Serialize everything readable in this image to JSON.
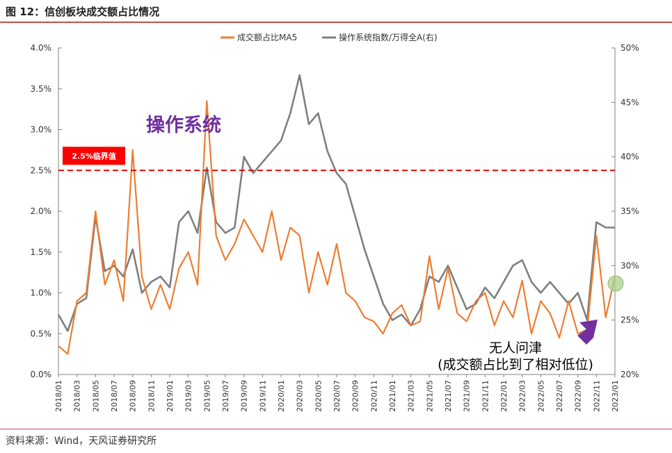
{
  "figure": {
    "title": "图 12：信创板块成交额占比情况",
    "source": "资料来源：Wind，天风证券研究所"
  },
  "colors": {
    "series_ratio": "#ed7d31",
    "series_index": "#7f7f7f",
    "threshold_line": "#e00000",
    "threshold_box": "#ff0000",
    "callout_text": "#7030a0",
    "arrow": "#7030a0",
    "marker": "#a9d18e"
  },
  "chart_data": {
    "type": "line",
    "title": "",
    "legend_position": "top-center",
    "x_ticks": [
      "2018/01",
      "2018/03",
      "2018/05",
      "2018/07",
      "2018/09",
      "2018/11",
      "2019/01",
      "2019/03",
      "2019/05",
      "2019/07",
      "2019/09",
      "2019/11",
      "2020/01",
      "2020/03",
      "2020/05",
      "2020/07",
      "2020/09",
      "2020/11",
      "2021/01",
      "2021/03",
      "2021/05",
      "2021/07",
      "2021/09",
      "2021/11",
      "2022/01",
      "2022/03",
      "2022/05",
      "2022/07",
      "2022/09",
      "2022/11",
      "2023/01"
    ],
    "y_left": {
      "min": 0,
      "max": 4.0,
      "ticks": [
        "0.0%",
        "0.5%",
        "1.0%",
        "1.5%",
        "2.0%",
        "2.5%",
        "3.0%",
        "3.5%",
        "4.0%"
      ]
    },
    "y_right": {
      "min": 20,
      "max": 50,
      "ticks": [
        "20%",
        "25%",
        "30%",
        "35%",
        "40%",
        "45%",
        "50%"
      ]
    },
    "series": [
      {
        "name": "成交额占比MA5",
        "axis": "left",
        "x": [
          "2018/01",
          "2018/02",
          "2018/03",
          "2018/04",
          "2018/05",
          "2018/06",
          "2018/07",
          "2018/08",
          "2018/09",
          "2018/10",
          "2018/11",
          "2018/12",
          "2019/01",
          "2019/02",
          "2019/03",
          "2019/04",
          "2019/05",
          "2019/06",
          "2019/07",
          "2019/08",
          "2019/09",
          "2019/10",
          "2019/11",
          "2019/12",
          "2020/01",
          "2020/02",
          "2020/03",
          "2020/04",
          "2020/05",
          "2020/06",
          "2020/07",
          "2020/08",
          "2020/09",
          "2020/10",
          "2020/11",
          "2020/12",
          "2021/01",
          "2021/02",
          "2021/03",
          "2021/04",
          "2021/05",
          "2021/06",
          "2021/07",
          "2021/08",
          "2021/09",
          "2021/10",
          "2021/11",
          "2021/12",
          "2022/01",
          "2022/02",
          "2022/03",
          "2022/04",
          "2022/05",
          "2022/06",
          "2022/07",
          "2022/08",
          "2022/09",
          "2022/10",
          "2022/11",
          "2022/12",
          "2023/01"
        ],
        "values": [
          0.35,
          0.25,
          0.9,
          1.0,
          2.0,
          1.1,
          1.4,
          0.9,
          2.75,
          1.2,
          0.8,
          1.1,
          0.8,
          1.3,
          1.5,
          1.1,
          3.35,
          1.7,
          1.4,
          1.6,
          1.9,
          1.7,
          1.5,
          2.0,
          1.4,
          1.8,
          1.7,
          1.0,
          1.5,
          1.1,
          1.6,
          1.0,
          0.9,
          0.7,
          0.65,
          0.5,
          0.75,
          0.85,
          0.6,
          0.65,
          1.45,
          0.8,
          1.3,
          0.75,
          0.65,
          0.9,
          1.0,
          0.6,
          0.9,
          0.7,
          1.15,
          0.5,
          0.9,
          0.75,
          0.45,
          0.9,
          0.5,
          0.55,
          1.7,
          0.7,
          1.2
        ]
      },
      {
        "name": "操作系统指数/万得全A(右)",
        "axis": "right",
        "x": [
          "2018/01",
          "2018/02",
          "2018/03",
          "2018/04",
          "2018/05",
          "2018/06",
          "2018/07",
          "2018/08",
          "2018/09",
          "2018/10",
          "2018/11",
          "2018/12",
          "2019/01",
          "2019/02",
          "2019/03",
          "2019/04",
          "2019/05",
          "2019/06",
          "2019/07",
          "2019/08",
          "2019/09",
          "2019/10",
          "2019/11",
          "2019/12",
          "2020/01",
          "2020/02",
          "2020/03",
          "2020/04",
          "2020/05",
          "2020/06",
          "2020/07",
          "2020/08",
          "2020/09",
          "2020/10",
          "2020/11",
          "2020/12",
          "2021/01",
          "2021/02",
          "2021/03",
          "2021/04",
          "2021/05",
          "2021/06",
          "2021/07",
          "2021/08",
          "2021/09",
          "2021/10",
          "2021/11",
          "2021/12",
          "2022/01",
          "2022/02",
          "2022/03",
          "2022/04",
          "2022/05",
          "2022/06",
          "2022/07",
          "2022/08",
          "2022/09",
          "2022/10",
          "2022/11",
          "2022/12",
          "2023/01"
        ],
        "values": [
          25.5,
          24.0,
          26.5,
          27.0,
          34.5,
          29.5,
          30.0,
          29.0,
          31.5,
          27.5,
          28.5,
          29.0,
          28.0,
          34.0,
          35.0,
          33.0,
          39.0,
          34.0,
          33.0,
          33.5,
          40.0,
          38.5,
          39.5,
          40.5,
          41.5,
          44.0,
          47.5,
          43.0,
          44.0,
          40.5,
          38.5,
          37.5,
          34.5,
          31.5,
          29.0,
          26.5,
          25.0,
          25.5,
          24.5,
          26.0,
          29.0,
          28.5,
          30.0,
          28.0,
          26.0,
          26.5,
          28.0,
          27.0,
          28.5,
          30.0,
          30.5,
          28.5,
          27.5,
          28.5,
          27.5,
          26.5,
          27.5,
          25.0,
          34.0,
          33.5,
          33.5
        ]
      }
    ],
    "threshold": {
      "value": 2.5,
      "label": "2.5%临界值"
    },
    "annotations": [
      {
        "text": "操作系统"
      },
      {
        "text": "无人问津"
      },
      {
        "text": "(成交额占比到了相对低位)"
      }
    ]
  }
}
